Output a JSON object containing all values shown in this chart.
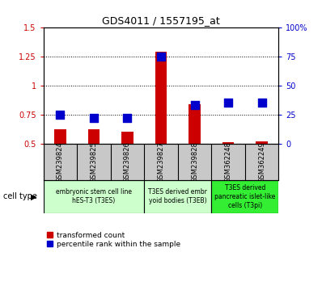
{
  "title": "GDS4011 / 1557195_at",
  "samples": [
    "GSM239824",
    "GSM239825",
    "GSM239826",
    "GSM239827",
    "GSM239828",
    "GSM362248",
    "GSM362249"
  ],
  "transformed_count": [
    0.62,
    0.62,
    0.6,
    1.29,
    0.84,
    0.51,
    0.52
  ],
  "percentile_rank": [
    25,
    22,
    22,
    75,
    33,
    35,
    35
  ],
  "ylim_left": [
    0.5,
    1.5
  ],
  "ylim_right": [
    0,
    100
  ],
  "yticks_left": [
    0.5,
    0.75,
    1.0,
    1.25,
    1.5
  ],
  "yticks_right": [
    0,
    25,
    50,
    75,
    100
  ],
  "ytick_labels_right": [
    "0",
    "25",
    "50",
    "75",
    "100%"
  ],
  "bar_color": "#cc0000",
  "dot_color": "#0000cc",
  "grid_color": "#000000",
  "bg_plot": "#ffffff",
  "bg_samples": "#c8c8c8",
  "groups": [
    {
      "indices": [
        0,
        1,
        2
      ],
      "label": "embryonic stem cell line\nhES-T3 (T3ES)",
      "color": "#ccffcc"
    },
    {
      "indices": [
        3,
        4
      ],
      "label": "T3ES derived embr\nyoid bodies (T3EB)",
      "color": "#ccffcc"
    },
    {
      "indices": [
        5,
        6
      ],
      "label": "T3ES derived\npancreatic islet-like\ncells (T3pi)",
      "color": "#33ee33"
    }
  ],
  "legend_red_label": "transformed count",
  "legend_blue_label": "percentile rank within the sample",
  "cell_type_label": "cell type",
  "bar_width": 0.35,
  "dot_size": 55,
  "left_ycolor": "#cc0000",
  "right_ycolor": "#0000cc",
  "title_fontsize": 9
}
